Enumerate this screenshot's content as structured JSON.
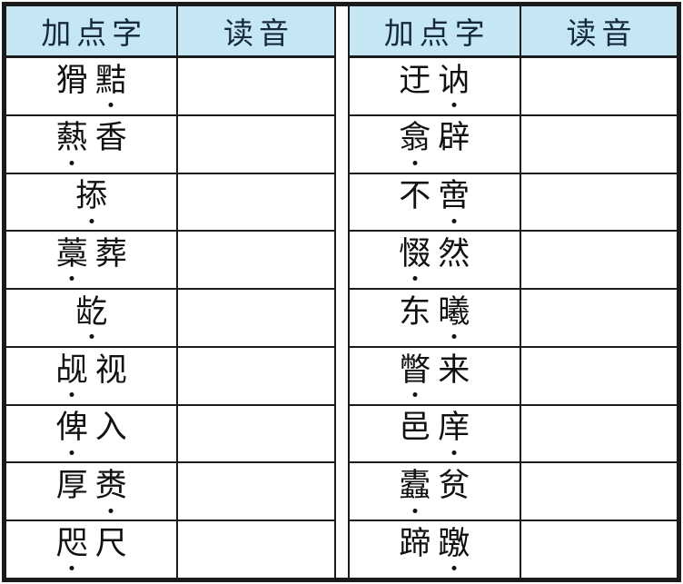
{
  "colors": {
    "header_bg": "#c5e7f4",
    "header_text": "#16293b",
    "border": "#1b1b1b",
    "text": "#111111",
    "page_bg": "#ffffff"
  },
  "tables": [
    {
      "headers": [
        "加点字",
        "读音"
      ],
      "rows": [
        {
          "word": "猾黠",
          "dot_index": 1,
          "reading": ""
        },
        {
          "word": "爇香",
          "dot_index": 0,
          "reading": ""
        },
        {
          "word": "掭",
          "dot_index": 0,
          "reading": ""
        },
        {
          "word": "藁葬",
          "dot_index": 0,
          "reading": ""
        },
        {
          "word": "龁",
          "dot_index": 0,
          "reading": ""
        },
        {
          "word": "觇视",
          "dot_index": 0,
          "reading": ""
        },
        {
          "word": "俾入",
          "dot_index": 0,
          "reading": ""
        },
        {
          "word": "厚赉",
          "dot_index": 1,
          "reading": ""
        },
        {
          "word": "咫尺",
          "dot_index": 0,
          "reading": ""
        }
      ]
    },
    {
      "headers": [
        "加点字",
        "读音"
      ],
      "rows": [
        {
          "word": "迂讷",
          "dot_index": 1,
          "reading": ""
        },
        {
          "word": "翕辟",
          "dot_index": 0,
          "reading": ""
        },
        {
          "word": "不啻",
          "dot_index": 1,
          "reading": ""
        },
        {
          "word": "惙然",
          "dot_index": 0,
          "reading": ""
        },
        {
          "word": "东曦",
          "dot_index": 1,
          "reading": ""
        },
        {
          "word": "瞥来",
          "dot_index": 0,
          "reading": ""
        },
        {
          "word": "邑庠",
          "dot_index": 1,
          "reading": ""
        },
        {
          "word": "蠹贫",
          "dot_index": 0,
          "reading": ""
        },
        {
          "word": "蹄躈",
          "dot_index": 1,
          "reading": ""
        }
      ]
    }
  ]
}
